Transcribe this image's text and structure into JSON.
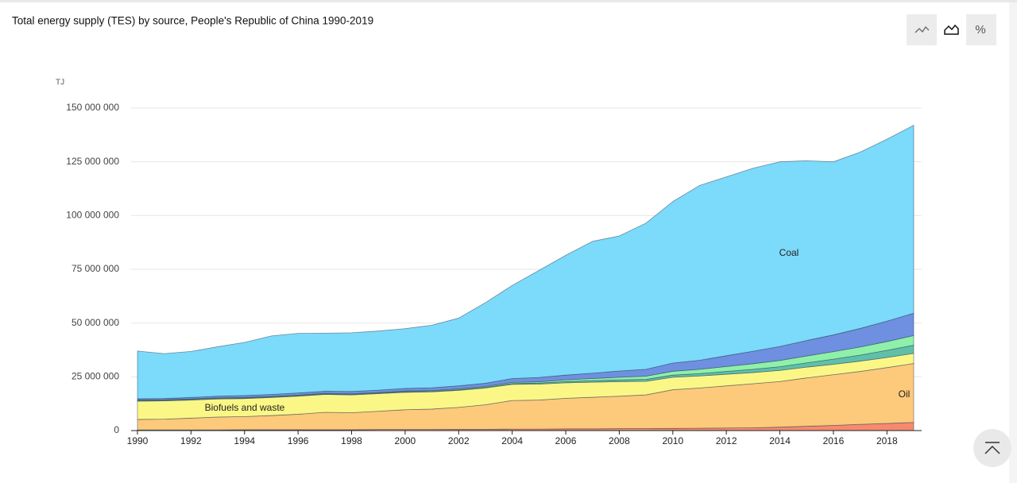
{
  "chart_data": {
    "type": "area",
    "stacked": true,
    "title": "Total energy supply (TES) by source, People's Republic of China 1990-2019",
    "y_label": "TJ",
    "x": [
      1990,
      1991,
      1992,
      1993,
      1994,
      1995,
      1996,
      1997,
      1998,
      1999,
      2000,
      2001,
      2002,
      2003,
      2004,
      2005,
      2006,
      2007,
      2008,
      2009,
      2010,
      2011,
      2012,
      2013,
      2014,
      2015,
      2016,
      2017,
      2018,
      2019
    ],
    "xlim": [
      1990,
      2019
    ],
    "xticks": [
      1990,
      1992,
      1994,
      1996,
      1998,
      2000,
      2002,
      2004,
      2006,
      2008,
      2010,
      2012,
      2014,
      2016,
      2018
    ],
    "ylim": [
      0,
      150000000
    ],
    "yticks": [
      0,
      {
        "value": 25000000,
        "label": "25 000 000"
      },
      {
        "value": 50000000,
        "label": "50 000 000"
      },
      {
        "value": 75000000,
        "label": "75 000 000"
      },
      {
        "value": 100000000,
        "label": "100 000 000"
      },
      {
        "value": 125000000,
        "label": "125 000 000"
      },
      {
        "value": 150000000,
        "label": "150 000 000"
      }
    ],
    "grid": true,
    "series": [
      {
        "color": "#f68a6f",
        "values": [
          300000,
          300000,
          300000,
          300000,
          400000,
          400000,
          400000,
          400000,
          400000,
          500000,
          500000,
          500000,
          600000,
          600000,
          700000,
          700000,
          800000,
          800000,
          900000,
          900000,
          1000000,
          1100000,
          1200000,
          1300000,
          1600000,
          2000000,
          2400000,
          2900000,
          3300000,
          3800000
        ]
      },
      {
        "name": "Oil",
        "color": "#fdc97b",
        "values": [
          4900000,
          5000000,
          5500000,
          6000000,
          6100000,
          6600000,
          7200000,
          8100000,
          7900000,
          8500000,
          9200000,
          9500000,
          10200000,
          11400000,
          13300000,
          13500000,
          14200000,
          14700000,
          15100000,
          15700000,
          18000000,
          18700000,
          19600000,
          20500000,
          21200000,
          22500000,
          23600000,
          24600000,
          26000000,
          27400000
        ]
      },
      {
        "name": "Biofuels and waste",
        "color": "#fbf787",
        "values": [
          8500000,
          8500000,
          8400000,
          8400000,
          8400000,
          8400000,
          8400000,
          8300000,
          8300000,
          8200000,
          8100000,
          8000000,
          7900000,
          7800000,
          7500000,
          7400000,
          7200000,
          7000000,
          6800000,
          6300000,
          5800000,
          5600000,
          5400000,
          5200000,
          5200000,
          5000000,
          4800000,
          4800000,
          4700000,
          4700000
        ]
      },
      {
        "color": "#5fc0aa",
        "values": [
          300000,
          300000,
          300000,
          300000,
          300000,
          300000,
          300000,
          300000,
          300000,
          300000,
          300000,
          300000,
          300000,
          300000,
          400000,
          500000,
          600000,
          700000,
          800000,
          900000,
          1000000,
          1100000,
          1300000,
          1500000,
          1700000,
          2000000,
          2400000,
          2800000,
          3300000,
          3800000
        ]
      },
      {
        "color": "#8ef0a9",
        "values": [
          200000,
          200000,
          200000,
          200000,
          200000,
          200000,
          200000,
          200000,
          200000,
          200000,
          300000,
          300000,
          400000,
          400000,
          500000,
          600000,
          800000,
          1000000,
          1200000,
          1500000,
          1800000,
          2000000,
          2300000,
          2600000,
          2900000,
          3200000,
          3500000,
          3800000,
          4100000,
          4500000
        ]
      },
      {
        "color": "#6f90e0",
        "values": [
          600000,
          600000,
          700000,
          800000,
          900000,
          900000,
          1000000,
          1000000,
          1100000,
          1100000,
          1200000,
          1300000,
          1400000,
          1500000,
          1800000,
          2000000,
          2200000,
          2500000,
          2900000,
          3200000,
          3800000,
          4200000,
          5000000,
          5800000,
          6500000,
          7200000,
          7800000,
          8600000,
          9500000,
          10400000
        ]
      },
      {
        "name": "Coal",
        "color": "#7cdafb",
        "values": [
          22200000,
          20900000,
          21400000,
          23000000,
          24700000,
          27200000,
          27700000,
          27000000,
          27300000,
          27500000,
          27800000,
          29100000,
          31500000,
          37500000,
          43300000,
          49800000,
          55700000,
          61300000,
          62800000,
          68000000,
          75100000,
          81300000,
          83200000,
          85100000,
          85900000,
          83600000,
          80500000,
          82000000,
          84600000,
          87400000
        ]
      }
    ]
  },
  "controls": {
    "percent": "%"
  }
}
